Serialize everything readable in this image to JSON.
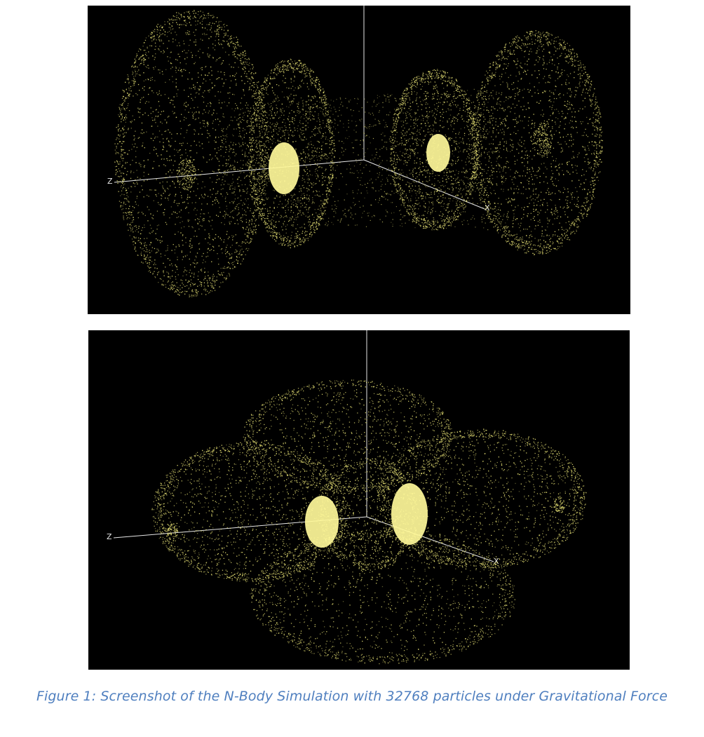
{
  "figure": {
    "caption": "Figure 1: Screenshot of the N-Body Simulation with 32768 particles under Gravitational Force"
  },
  "panels": [
    {
      "axis_labels": {
        "z": "Z",
        "x": "X"
      }
    },
    {
      "axis_labels": {
        "z": "Z",
        "x": "X"
      }
    }
  ],
  "colors": {
    "background": "#000000",
    "particle": "#f2ec7a",
    "particle_core": "#fff89a",
    "axis": "#e6e6e6",
    "caption": "#4f7fbf"
  }
}
